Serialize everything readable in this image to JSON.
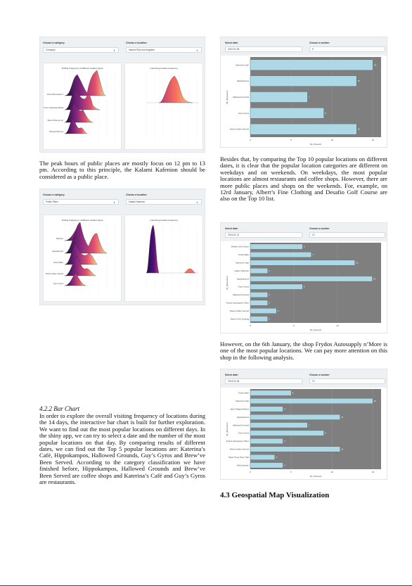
{
  "figA": {
    "category_label": "Choose a category:",
    "category_value": "Company",
    "location_label": "Choose a location:",
    "location_value": "Inlance Pipe and Irrigation",
    "left_title": "Visiting Frequency of different location types",
    "right_title": "Interesting location frequency",
    "rows": [
      "Jones Microsystems",
      "Flynn Lightspeed Media",
      "Saturn Pharma Ltd.",
      "Mimosa Partners"
    ]
  },
  "figB": {
    "date_label": "Select date:",
    "date_value": "2022-01-08",
    "number_label": "Choose a number",
    "number_value": "5",
    "ylabel": "fill_of(location)",
    "xlabel": "fill_of(count)"
  },
  "figC": {
    "category_label": "Choose a category:",
    "category_value": "Public Place",
    "location_label": "Choose a location:",
    "location_value": "Kalami Kafenion",
    "left_title": "Visiting Frequency of different location types",
    "right_title": "Interesting location frequency",
    "rows": [
      "Kafenion",
      "Hippokampos",
      "Ouzeri Elian",
      "Brew've Been Served",
      "Guy's Gyros"
    ]
  },
  "figD": {
    "date_label": "Select date:",
    "date_value": "2014-01-12",
    "number_label": "Choose a number",
    "number_value": "10",
    "ylabel": "fill_of(location)",
    "xlabel": "fill_of(count)"
  },
  "figE": {
    "date_label": "Select date:",
    "date_value": "2014-01-06",
    "number_label": "Choose a number",
    "number_value": "10",
    "ylabel": "fill_of(location)",
    "xlabel": "fill_of(count)"
  },
  "text": {
    "p1": "The peak hours of public places are mostly focus on 12 pm to 13 pm. According to this principle, the Kalami Kafenion should be considered as a public place.",
    "p2": "Besides that, by comparing the Top 10 popular locations on different dates, it is clear that the popular location categories are different on weekdays and on weekends. On weekdays, the most popular locations are almost restaurants and coffee shops. However, there are more public places and shops on the weekends. For, example, on 12rd January, Albert’s Fine Clothing and Desafio Golf Course are also on the Top 10 list.",
    "p3": "However, on the 6th January, the shop Frydos Autosupply n’More is one of the most popular locations. We can pay more attention on this shop in the following analysis.",
    "sub_heading": "4.2.2   Bar Chart",
    "p4": "In order to explore the overall visiting frequency of locations during the 14 days, the interactive bar chart is built for further exploration. We want to find out the most popular locations on different days. In the shiny app, we can try to select a date and the number of the most popular locations on that day. By comparing results of different dates, we can find out the Top 5 popular locations are: Katerina’s Café, Hippokampos, Hallowed Grounds, Guy’s Gyros and Brew’ve Been Served. According to the category classification we have finished before, Hippokampos, Hallowed Grounds and Brew’ve Been Served are coffee shops and Katerina’s Café and Guy’s Gyros are restaurants.",
    "section_heading": "4.3   Geospatial Map Visualization"
  },
  "chart_data": [
    {
      "type": "bar",
      "orientation": "horizontal",
      "categories": [
        "Katerina's Cafe",
        "Hippokampos",
        "Hallowed Grounds",
        "Guy's Gyros",
        "Brew've Been Served"
      ],
      "values": [
        15,
        13,
        7,
        9,
        13
      ],
      "xlim": [
        0,
        16
      ],
      "xticks": [
        0,
        5,
        10,
        15
      ],
      "grid": true
    },
    {
      "type": "bar",
      "orientation": "horizontal",
      "categories": [
        "Desafio Golf Course",
        "Ouzeri Elian",
        "Katerina's Cafe",
        "Kalami Kafenion",
        "Hippokampos",
        "Guy's Gyros",
        "Hallowed Grounds",
        "Frydos Autosupply n'More",
        "Brew've Been Served",
        "Albert's Fine Clothing"
      ],
      "values": [
        6,
        7,
        12,
        2,
        14,
        6,
        2,
        2,
        3,
        2
      ],
      "xlim": [
        0,
        15
      ],
      "xticks": [
        0,
        5,
        10
      ],
      "grid": true
    },
    {
      "type": "bar",
      "orientation": "horizontal",
      "categories": [
        "Ouzeri Elian",
        "Katerina's Cafe",
        "Jack's Magical Beans",
        "Hippokampos",
        "Hallowed Grounds",
        "Guy's Gyros",
        "Frydos Autosupply n'More",
        "Brew've Been Served",
        "Bean There Done That",
        "Abila Zacharo"
      ],
      "values": [
        5,
        15,
        4,
        11,
        7,
        9,
        4,
        11,
        3,
        4
      ],
      "xlim": [
        0,
        16
      ],
      "xticks": [
        0,
        5,
        10,
        15
      ],
      "grid": true
    }
  ]
}
